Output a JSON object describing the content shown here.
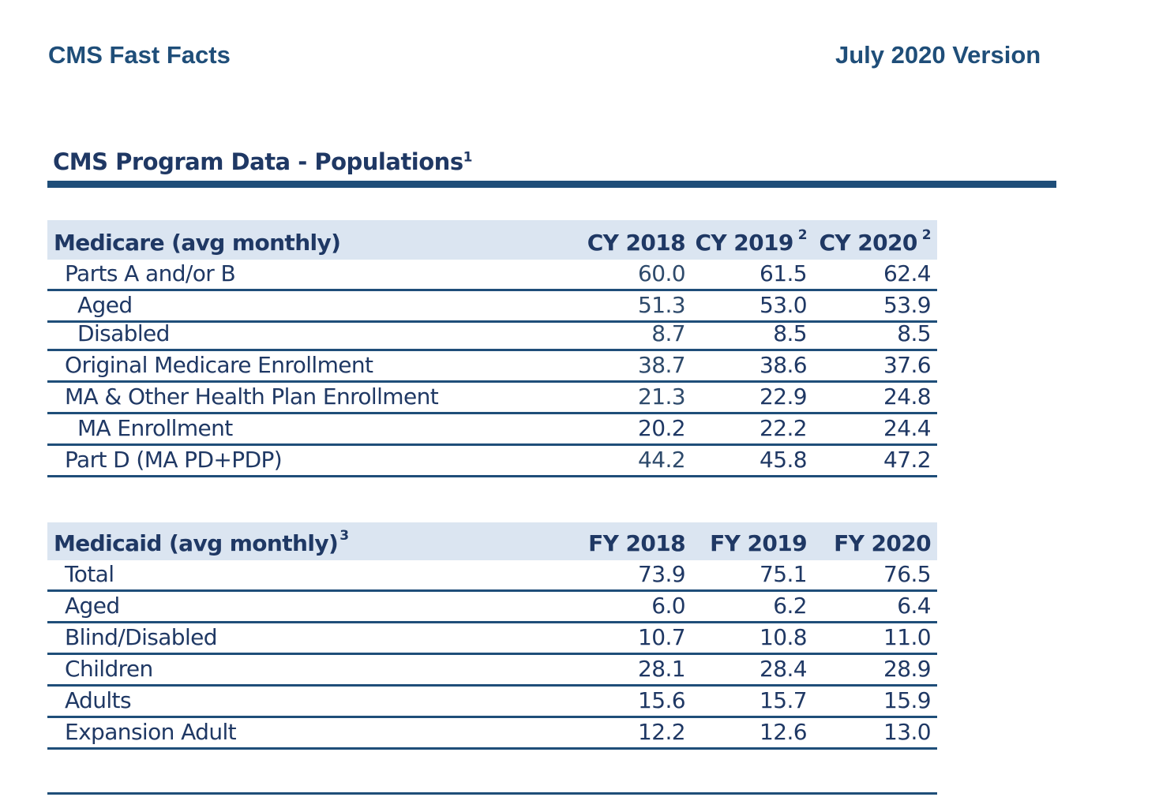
{
  "header": {
    "left": "CMS Fast Facts",
    "right": "July 2020 Version"
  },
  "section": {
    "title": "CMS Program Data - Populations",
    "title_sup": "1"
  },
  "medicare": {
    "title": "Medicare (avg monthly)",
    "columns": [
      {
        "label": "CY 2018",
        "sup": ""
      },
      {
        "label": "CY 2019",
        "sup": "2"
      },
      {
        "label": "CY 2020",
        "sup": "2"
      }
    ],
    "rows": [
      {
        "label": "Parts A and/or B",
        "values": [
          "60.0",
          "61.5",
          "62.4"
        ]
      },
      {
        "label": "Aged",
        "values": [
          "51.3",
          "53.0",
          "53.9"
        ]
      },
      {
        "label": "Disabled",
        "values": [
          "8.7",
          "8.5",
          "8.5"
        ]
      },
      {
        "label": "Original Medicare Enrollment",
        "values": [
          "38.7",
          "38.6",
          "37.6"
        ]
      },
      {
        "label": "MA & Other Health Plan Enrollment",
        "values": [
          "21.3",
          "22.9",
          "24.8"
        ]
      },
      {
        "label": "MA Enrollment",
        "values": [
          "20.2",
          "22.2",
          "24.4"
        ]
      },
      {
        "label": "Part D (MA PD+PDP)",
        "values": [
          "44.2",
          "45.8",
          "47.2"
        ]
      }
    ]
  },
  "medicaid": {
    "title": "Medicaid (avg monthly)",
    "title_sup": "3",
    "columns": [
      "FY 2018",
      "FY 2019",
      "FY 2020"
    ],
    "rows": [
      {
        "label": "Total",
        "values": [
          "73.9",
          "75.1",
          "76.5"
        ]
      },
      {
        "label": "Aged",
        "values": [
          "6.0",
          "6.2",
          "6.4"
        ]
      },
      {
        "label": "Blind/Disabled",
        "values": [
          "10.7",
          "10.8",
          "11.0"
        ]
      },
      {
        "label": "Children",
        "values": [
          "28.1",
          "28.4",
          "28.9"
        ]
      },
      {
        "label": "Adults",
        "values": [
          "15.6",
          "15.7",
          "15.9"
        ]
      },
      {
        "label": "Expansion Adult",
        "values": [
          "12.2",
          "12.6",
          "13.0"
        ]
      }
    ]
  }
}
